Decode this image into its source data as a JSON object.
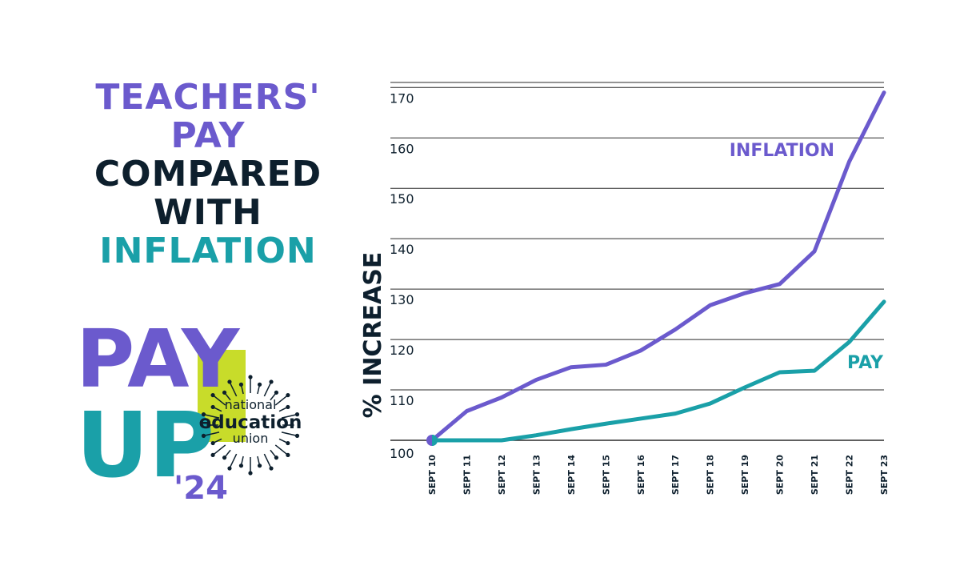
{
  "title_lines": [
    {
      "text": "TEACHERS'",
      "color": "#6b5acd"
    },
    {
      "text": "PAY",
      "color": "#6b5acd"
    },
    {
      "text": "COMPARED",
      "color": "#0d1f2d"
    },
    {
      "text": "WITH",
      "color": "#0d1f2d"
    },
    {
      "text": "INFLATION",
      "color": "#1aa0a8"
    }
  ],
  "logo": {
    "pay": "PAY",
    "up": "UP",
    "year": "'24",
    "org_line1": "national",
    "org_line2": "education",
    "org_line3": "union",
    "colors": {
      "purple": "#6b5acd",
      "teal": "#1aa0a8",
      "lime": "#c8dc2a"
    }
  },
  "chart_data": {
    "type": "line",
    "categories": [
      "SEPT 10",
      "SEPT 11",
      "SEPT 12",
      "SEPT 13",
      "SEPT 14",
      "SEPT 15",
      "SEPT 16",
      "SEPT 17",
      "SEPT 18",
      "SEPT 19",
      "SEPT 20",
      "SEPT 21",
      "SEPT 22",
      "SEPT 23"
    ],
    "ylabel": "% INCREASE",
    "ylim": [
      100,
      171
    ],
    "yticks": [
      100,
      110,
      120,
      130,
      140,
      150,
      160,
      170
    ],
    "grid": true,
    "series": [
      {
        "name": "INFLATION",
        "color": "#6b5acd",
        "values": [
          100,
          105.8,
          108.5,
          112,
          114.5,
          115,
          117.8,
          122,
          126.8,
          129.2,
          131,
          137.5,
          155.3,
          169
        ]
      },
      {
        "name": "PAY",
        "color": "#1aa0a8",
        "values": [
          100,
          100,
          100,
          101,
          102.2,
          103.3,
          104.3,
          105.3,
          107.3,
          110.5,
          113.5,
          113.8,
          119.5,
          127.5
        ]
      }
    ]
  }
}
